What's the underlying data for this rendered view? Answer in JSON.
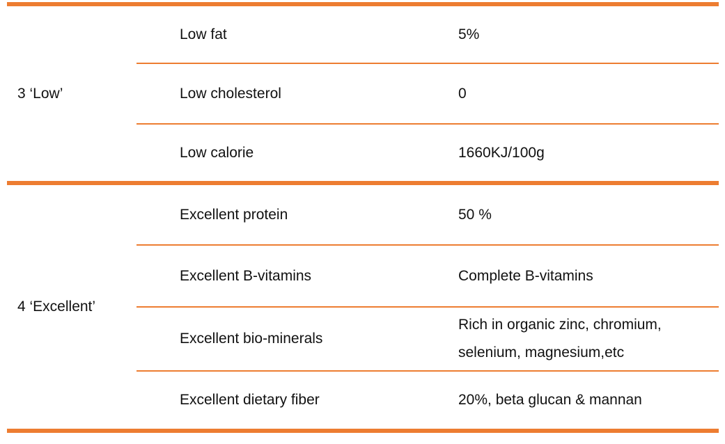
{
  "accent_color": "#ED7D31",
  "table": {
    "groups": [
      {
        "label": "3 ‘Low’",
        "rows": [
          {
            "name": "Low fat",
            "value": "5%"
          },
          {
            "name": "Low cholesterol",
            "value": "0"
          },
          {
            "name": "Low calorie",
            "value": "1660KJ/100g"
          }
        ]
      },
      {
        "label": "4 ‘Excellent’",
        "rows": [
          {
            "name": "Excellent protein",
            "value": "50 %"
          },
          {
            "name": "Excellent B-vitamins",
            "value": "Complete B-vitamins"
          },
          {
            "name": "Excellent bio-minerals",
            "value": "Rich in organic zinc, chromium, selenium, magnesium,etc"
          },
          {
            "name": "Excellent dietary fiber",
            "value": "20%, beta glucan & mannan"
          }
        ]
      }
    ]
  }
}
